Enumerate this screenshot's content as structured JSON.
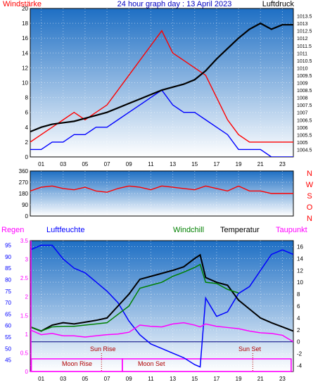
{
  "chart_data": [
    {
      "type": "line",
      "title": "24 hour graph day : 13 April 2023",
      "left_label": "Windstärke",
      "right_label": "Luftdruck",
      "x_ticks": [
        "01",
        "03",
        "05",
        "07",
        "09",
        "11",
        "13",
        "15",
        "17",
        "19",
        "21",
        "23"
      ],
      "y_left_ticks": [
        "20",
        "18",
        "16",
        "14",
        "12",
        "10",
        "8",
        "6",
        "4",
        "2",
        "0"
      ],
      "y_left_range": [
        0,
        20
      ],
      "y_right_ticks": [
        "1013.5",
        "1013",
        "1012.5",
        "1012",
        "1011.5",
        "1011",
        "1010.5",
        "1010",
        "1009.5",
        "1009",
        "1008.5",
        "1008",
        "1007.5",
        "1007",
        "1006.5",
        "1006",
        "1005.5",
        "1005",
        "1004.5"
      ],
      "y_right_range": [
        1004,
        1014
      ],
      "series": [
        {
          "name": "Windstärke gust",
          "color": "#ff0000",
          "x": [
            0,
            1,
            2,
            3,
            4,
            5,
            6,
            7,
            8,
            9,
            10,
            11,
            12,
            13,
            14,
            15,
            16,
            17,
            18,
            19,
            20,
            21,
            22,
            23,
            24
          ],
          "y": [
            2,
            3,
            4,
            5,
            6,
            5,
            6,
            7,
            9,
            11,
            13,
            15,
            17,
            14,
            13,
            12,
            11,
            8,
            5,
            3,
            2,
            2,
            2,
            2,
            2
          ]
        },
        {
          "name": "Windstärke mean",
          "color": "#0000ff",
          "x": [
            0,
            1,
            2,
            3,
            4,
            5,
            6,
            7,
            8,
            9,
            10,
            11,
            12,
            13,
            14,
            15,
            16,
            17,
            18,
            19,
            20,
            21,
            22,
            23,
            24
          ],
          "y": [
            1,
            1,
            2,
            2,
            3,
            3,
            4,
            4,
            5,
            6,
            7,
            8,
            9,
            7,
            6,
            6,
            5,
            4,
            3,
            1,
            1,
            1,
            0,
            0,
            0
          ]
        },
        {
          "name": "Luftdruck",
          "color": "#000000",
          "x": [
            0,
            1,
            2,
            3,
            4,
            5,
            6,
            7,
            8,
            9,
            10,
            11,
            12,
            13,
            14,
            15,
            16,
            17,
            18,
            19,
            20,
            21,
            22,
            23,
            24
          ],
          "y": [
            1005.7,
            1006.0,
            1006.2,
            1006.3,
            1006.4,
            1006.6,
            1006.8,
            1007.0,
            1007.3,
            1007.6,
            1007.9,
            1008.2,
            1008.5,
            1008.7,
            1008.9,
            1009.2,
            1009.8,
            1010.6,
            1011.3,
            1012.0,
            1012.6,
            1013.0,
            1012.6,
            1012.9,
            1012.9
          ]
        }
      ]
    },
    {
      "type": "line",
      "y_ticks": [
        "360",
        "270",
        "180",
        "90",
        "0"
      ],
      "y_range": [
        0,
        360
      ],
      "right_labels": [
        "N",
        "W",
        "S",
        "O",
        "N"
      ],
      "series": [
        {
          "name": "Windrichtung",
          "color": "#ff0000",
          "x": [
            0,
            1,
            2,
            3,
            4,
            5,
            6,
            7,
            8,
            9,
            10,
            11,
            12,
            13,
            14,
            15,
            16,
            17,
            18,
            19,
            20,
            21,
            22,
            23,
            24
          ],
          "y": [
            200,
            230,
            240,
            220,
            210,
            230,
            200,
            190,
            220,
            240,
            230,
            210,
            240,
            230,
            220,
            210,
            240,
            220,
            200,
            240,
            200,
            200,
            180,
            180,
            180
          ]
        }
      ]
    },
    {
      "type": "line",
      "legend": [
        "Regen",
        "Luftfeuchte",
        "Windchill",
        "Temperatur",
        "Taupunkt"
      ],
      "x_ticks": [
        "01",
        "03",
        "05",
        "07",
        "09",
        "11",
        "13",
        "15",
        "17",
        "19",
        "21",
        "23"
      ],
      "rain_ticks": [
        "3.5",
        "3",
        "2.5",
        "2",
        "1.5",
        "1",
        "0.5",
        "0"
      ],
      "rain_range": [
        0,
        3.5
      ],
      "humidity_ticks": [
        "95",
        "90",
        "85",
        "80",
        "75",
        "70",
        "65",
        "60",
        "55",
        "50",
        "45"
      ],
      "humidity_range": [
        40,
        97
      ],
      "temp_ticks": [
        "16",
        "14",
        "12",
        "10",
        "8",
        "6",
        "4",
        "2",
        "0",
        "-2",
        "-4"
      ],
      "temp_range": [
        -5,
        17
      ],
      "annotations": [
        "Sun Rise",
        "Sun Set",
        "Moon Rise",
        "Moon Set"
      ],
      "series": [
        {
          "name": "Luftfeuchte",
          "color": "#0000ff",
          "axis": "humidity",
          "x": [
            0,
            1,
            2,
            3,
            4,
            5,
            6,
            7,
            8,
            9,
            10,
            11,
            12,
            13,
            14,
            15,
            15.5,
            16,
            17,
            18,
            19,
            20,
            21,
            22,
            23,
            24
          ],
          "y": [
            93,
            95,
            95,
            89,
            85,
            83,
            79,
            75,
            70,
            62,
            56,
            52,
            50,
            48,
            46,
            43,
            42,
            72,
            64,
            66,
            74,
            77,
            84,
            91,
            93,
            91
          ]
        },
        {
          "name": "Temperatur",
          "color": "#000000",
          "axis": "temp",
          "x": [
            0,
            1,
            2,
            3,
            4,
            5,
            6,
            7,
            8,
            9,
            10,
            11,
            12,
            13,
            14,
            15,
            15.5,
            16,
            17,
            18,
            19,
            20,
            21,
            22,
            23,
            24
          ],
          "y": [
            2.5,
            1.8,
            2.8,
            3.2,
            3.0,
            3.3,
            3.6,
            4.0,
            6.0,
            8.0,
            10.5,
            11.0,
            11.5,
            12.0,
            12.6,
            14.0,
            14.6,
            10.8,
            10.0,
            9.5,
            7.0,
            5.5,
            4.0,
            3.2,
            2.5,
            1.8
          ]
        },
        {
          "name": "Windchill",
          "color": "#008000",
          "axis": "temp",
          "x": [
            0,
            1,
            2,
            3,
            4,
            5,
            6,
            7,
            8,
            9,
            10,
            11,
            12,
            13,
            14,
            15,
            15.5,
            16,
            17,
            18,
            19
          ],
          "y": [
            2.5,
            1.8,
            2.5,
            2.6,
            2.6,
            2.8,
            3.0,
            3.2,
            4.6,
            6.0,
            9.0,
            9.5,
            10.0,
            11.0,
            11.7,
            12.5,
            13.0,
            10.0,
            9.8,
            8.8,
            8.2
          ]
        },
        {
          "name": "Taupunkt",
          "color": "#ff00ff",
          "axis": "temp",
          "x": [
            0,
            1,
            2,
            3,
            4,
            5,
            6,
            7,
            8,
            9,
            10,
            11,
            12,
            13,
            14,
            15,
            15.5,
            16,
            17,
            18,
            19,
            20,
            21,
            22,
            23,
            24
          ],
          "y": [
            2.0,
            1.2,
            1.4,
            1.0,
            1.0,
            0.8,
            1.0,
            1.2,
            1.3,
            1.6,
            2.8,
            2.6,
            2.5,
            3.0,
            3.2,
            2.8,
            2.5,
            3.0,
            2.6,
            2.4,
            2.2,
            1.8,
            1.5,
            1.4,
            1.1,
            0
          ]
        },
        {
          "name": "Regen",
          "color": "#ff00ff",
          "axis": "rain",
          "x": [
            0,
            24
          ],
          "y": [
            0,
            0
          ]
        }
      ]
    }
  ]
}
